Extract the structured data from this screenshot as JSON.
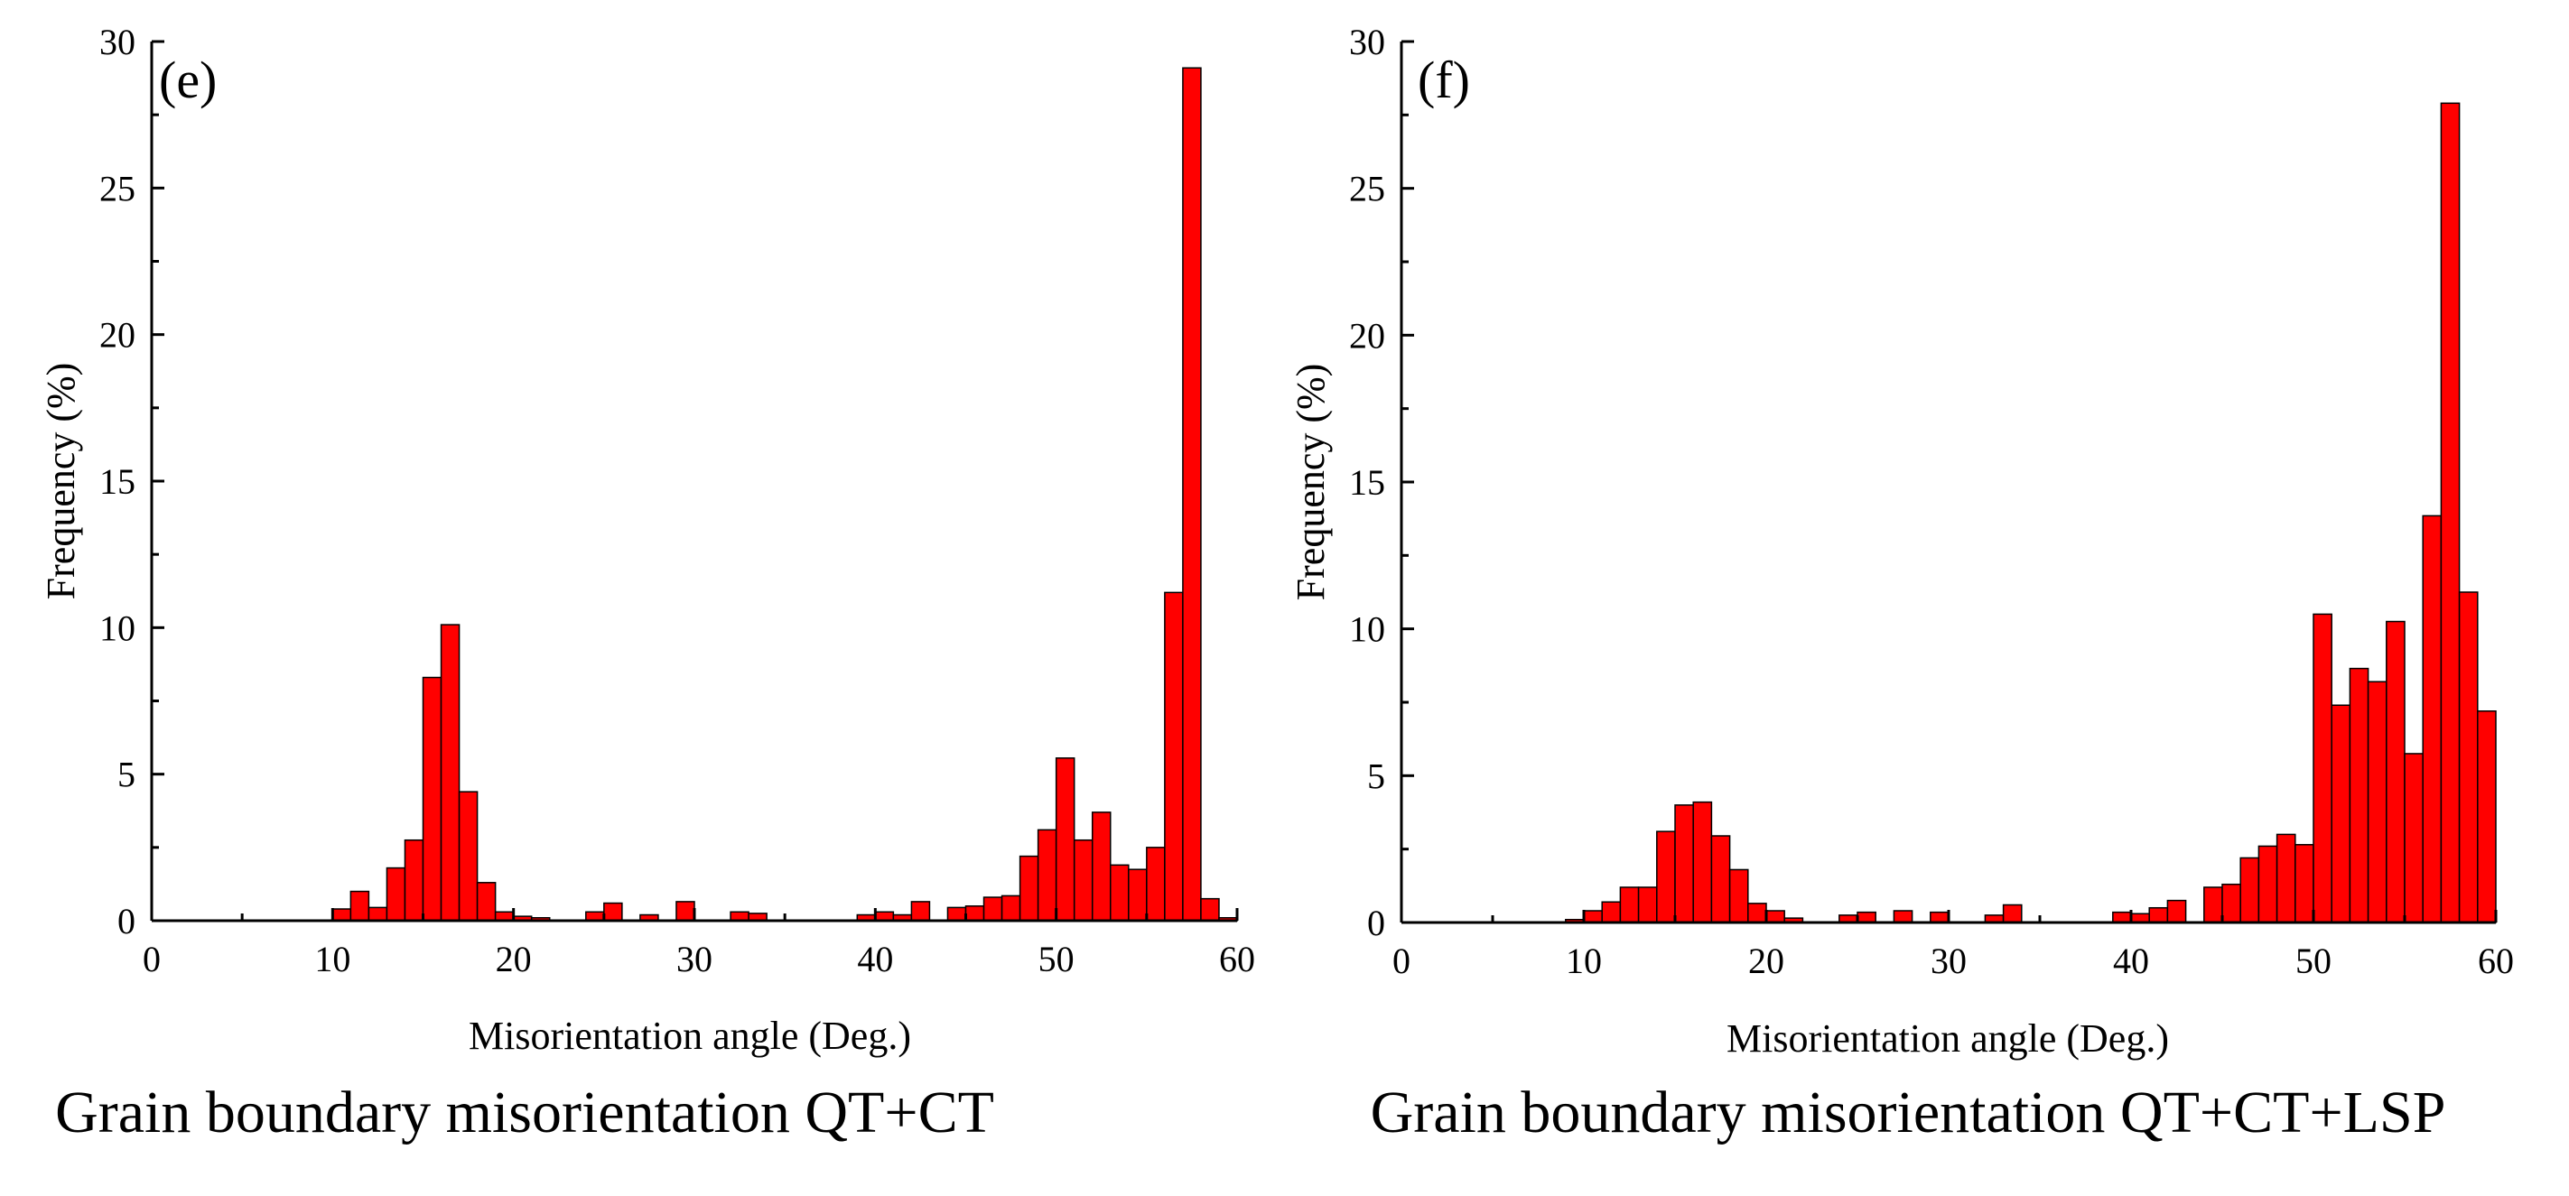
{
  "chart_data": [
    {
      "type": "bar",
      "panel_label": "(e)",
      "caption": "Grain boundary misorientation QT+CT",
      "xlabel": "Misorientation angle (Deg.)",
      "ylabel": "Frequency (%)",
      "xlim": [
        0,
        60
      ],
      "ylim": [
        0,
        30
      ],
      "xticks": [
        "0",
        "10",
        "20",
        "30",
        "40",
        "50",
        "60"
      ],
      "yticks": [
        "0",
        "5",
        "10",
        "15",
        "20",
        "25",
        "30"
      ],
      "bin_width": 1,
      "grid": false,
      "bar_color": "#ff0000",
      "x": [
        10,
        11,
        12,
        13,
        14,
        15,
        16,
        17,
        18,
        19,
        20,
        21,
        24,
        25,
        27,
        29,
        32,
        33,
        39,
        40,
        41,
        42,
        44,
        45,
        46,
        47,
        48,
        49,
        50,
        51,
        52,
        53,
        54,
        55,
        56,
        57,
        58,
        59
      ],
      "values": [
        0.4,
        1.0,
        0.45,
        1.8,
        2.75,
        8.3,
        10.1,
        4.4,
        1.3,
        0.3,
        0.15,
        0.1,
        0.3,
        0.6,
        0.2,
        0.65,
        0.3,
        0.25,
        0.2,
        0.3,
        0.2,
        0.65,
        0.45,
        0.5,
        0.8,
        0.85,
        2.2,
        3.1,
        5.55,
        2.75,
        3.7,
        1.9,
        1.75,
        2.5,
        11.2,
        29.1,
        0.75,
        0.1
      ]
    },
    {
      "type": "bar",
      "panel_label": "(f)",
      "caption": "Grain boundary misorientation QT+CT+LSP",
      "xlabel": "Misorientation angle (Deg.)",
      "ylabel": "Frequency (%)",
      "xlim": [
        0,
        60
      ],
      "ylim": [
        0,
        30
      ],
      "xticks": [
        "0",
        "10",
        "20",
        "30",
        "40",
        "50",
        "60"
      ],
      "yticks": [
        "0",
        "5",
        "10",
        "15",
        "20",
        "25",
        "30"
      ],
      "bin_width": 1,
      "grid": false,
      "bar_color": "#ff0000",
      "x": [
        9,
        10,
        11,
        12,
        13,
        14,
        15,
        16,
        17,
        18,
        19,
        20,
        21,
        24,
        25,
        27,
        29,
        32,
        33,
        39,
        40,
        41,
        42,
        44,
        45,
        46,
        47,
        48,
        49,
        50,
        51,
        52,
        53,
        54,
        55,
        56,
        57,
        58,
        59
      ],
      "values": [
        0.1,
        0.4,
        0.7,
        1.2,
        1.2,
        3.1,
        4.0,
        4.1,
        2.95,
        1.8,
        0.65,
        0.4,
        0.15,
        0.25,
        0.35,
        0.4,
        0.35,
        0.25,
        0.6,
        0.35,
        0.3,
        0.5,
        0.75,
        1.2,
        1.3,
        2.2,
        2.6,
        3.0,
        2.65,
        10.5,
        7.4,
        8.65,
        8.2,
        10.25,
        5.75,
        13.85,
        27.9,
        11.25,
        7.2
      ]
    }
  ]
}
